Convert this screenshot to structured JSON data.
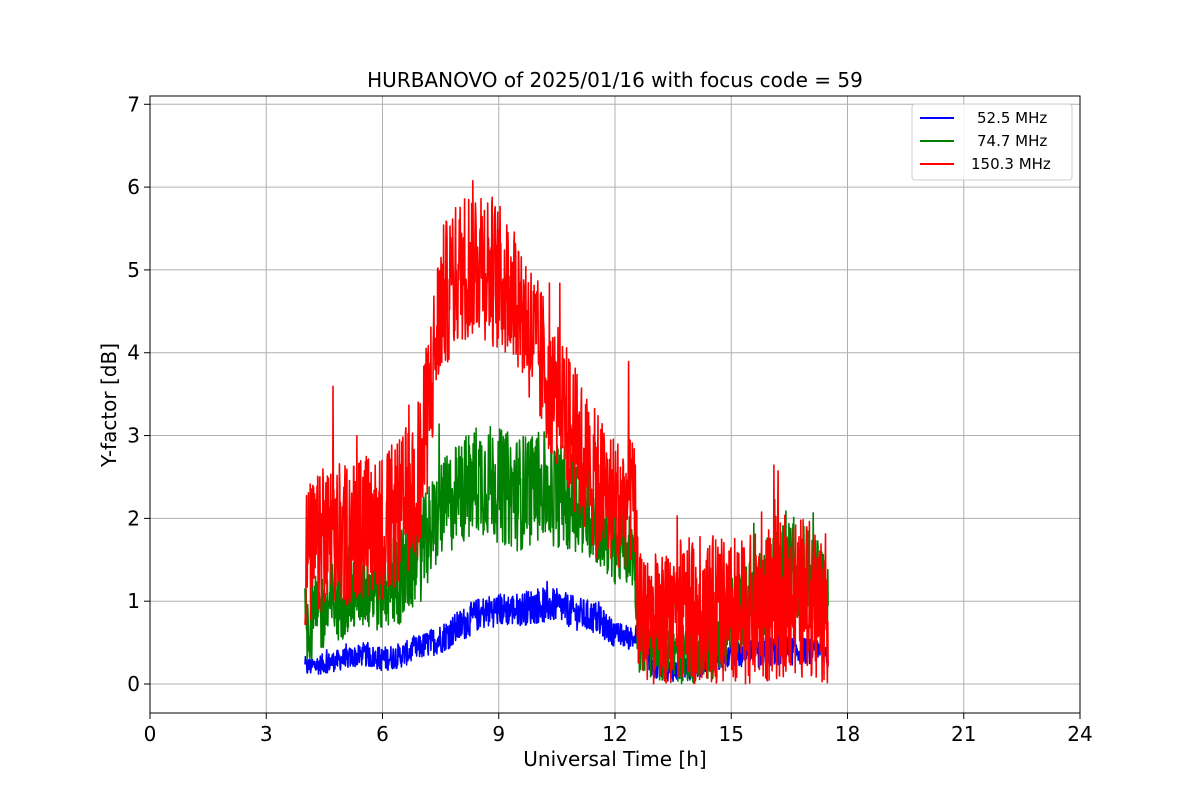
{
  "chart_data": {
    "type": "line",
    "title": "HURBANOVO of 2025/01/16 with focus code = 59",
    "xlabel": "Universal Time [h]",
    "ylabel": "Y-factor [dB]",
    "xlim": [
      0,
      24
    ],
    "ylim": [
      -0.35,
      7.1
    ],
    "xticks": [
      0,
      3,
      6,
      9,
      12,
      15,
      18,
      21,
      24
    ],
    "xtick_labels": [
      "0",
      "3",
      "6",
      "9",
      "12",
      "15",
      "18",
      "21",
      "24"
    ],
    "yticks": [
      0,
      1,
      2,
      3,
      4,
      5,
      6,
      7
    ],
    "ytick_labels": [
      "0",
      "1",
      "2",
      "3",
      "4",
      "5",
      "6",
      "7"
    ],
    "grid": true,
    "legend_position": "top-right",
    "series": [
      {
        "name": "52.5 MHz",
        "color": "#0000ff",
        "x": [
          4.0,
          4.5,
          5.0,
          5.5,
          6.0,
          6.5,
          7.0,
          7.5,
          8.0,
          8.5,
          9.0,
          9.5,
          10.0,
          10.5,
          11.0,
          11.5,
          12.0,
          12.5,
          12.6,
          13.0,
          13.5,
          14.0,
          14.5,
          15.0,
          15.5,
          16.0,
          16.5,
          17.0,
          17.5
        ],
        "y": [
          0.2,
          0.25,
          0.3,
          0.35,
          0.3,
          0.35,
          0.45,
          0.55,
          0.7,
          0.85,
          0.9,
          0.9,
          0.95,
          0.95,
          0.85,
          0.8,
          0.6,
          0.55,
          0.6,
          0.2,
          0.15,
          0.2,
          0.3,
          0.35,
          0.35,
          0.4,
          0.4,
          0.4,
          0.35
        ],
        "spread": [
          0.12,
          0.12,
          0.13,
          0.13,
          0.15,
          0.15,
          0.15,
          0.18,
          0.2,
          0.2,
          0.2,
          0.2,
          0.22,
          0.2,
          0.2,
          0.2,
          0.15,
          0.15,
          0.15,
          0.15,
          0.12,
          0.15,
          0.15,
          0.15,
          0.18,
          0.18,
          0.18,
          0.15,
          0.15
        ]
      },
      {
        "name": "74.7 MHz",
        "color": "#008000",
        "x": [
          4.0,
          4.5,
          5.0,
          5.5,
          6.0,
          6.5,
          7.0,
          7.5,
          8.0,
          8.5,
          9.0,
          9.5,
          10.0,
          10.5,
          11.0,
          11.5,
          12.0,
          12.5,
          12.6,
          13.0,
          13.5,
          14.0,
          14.5,
          15.0,
          15.5,
          16.0,
          16.5,
          17.0,
          17.5
        ],
        "y": [
          0.7,
          0.9,
          1.1,
          1.2,
          1.2,
          1.3,
          1.6,
          2.1,
          2.3,
          2.5,
          2.4,
          2.3,
          2.4,
          2.3,
          2.2,
          2.0,
          1.7,
          1.6,
          0.5,
          0.4,
          0.35,
          0.4,
          0.5,
          0.8,
          1.0,
          1.2,
          1.4,
          1.3,
          1.1
        ],
        "spread": [
          0.5,
          0.5,
          0.55,
          0.55,
          0.6,
          0.6,
          0.6,
          0.6,
          0.65,
          0.7,
          0.7,
          0.7,
          0.7,
          0.65,
          0.6,
          0.55,
          0.5,
          0.45,
          0.35,
          0.35,
          0.35,
          0.4,
          0.45,
          0.5,
          0.55,
          0.6,
          0.6,
          0.6,
          0.55
        ]
      },
      {
        "name": "150.3 MHz",
        "color": "#ff0000",
        "x": [
          4.0,
          4.5,
          5.0,
          5.5,
          6.0,
          6.5,
          7.0,
          7.5,
          8.0,
          8.5,
          9.0,
          9.5,
          10.0,
          10.5,
          11.0,
          11.5,
          12.0,
          12.5,
          12.6,
          13.0,
          13.5,
          14.0,
          14.5,
          15.0,
          15.5,
          16.0,
          16.5,
          17.0,
          17.5
        ],
        "y": [
          1.5,
          1.7,
          1.8,
          1.9,
          1.9,
          2.1,
          2.6,
          4.6,
          5.0,
          5.2,
          4.9,
          4.7,
          4.0,
          3.5,
          2.9,
          2.4,
          2.2,
          2.2,
          0.9,
          0.7,
          0.8,
          0.9,
          0.9,
          0.8,
          0.9,
          1.0,
          1.1,
          1.0,
          0.9
        ],
        "spread": [
          0.9,
          0.9,
          0.9,
          0.9,
          0.9,
          0.9,
          1.0,
          0.9,
          0.9,
          1.0,
          0.9,
          0.9,
          0.9,
          0.9,
          0.9,
          0.9,
          0.8,
          0.8,
          0.7,
          0.8,
          0.8,
          0.9,
          0.9,
          0.9,
          0.9,
          1.0,
          1.0,
          1.0,
          0.9
        ]
      }
    ]
  }
}
